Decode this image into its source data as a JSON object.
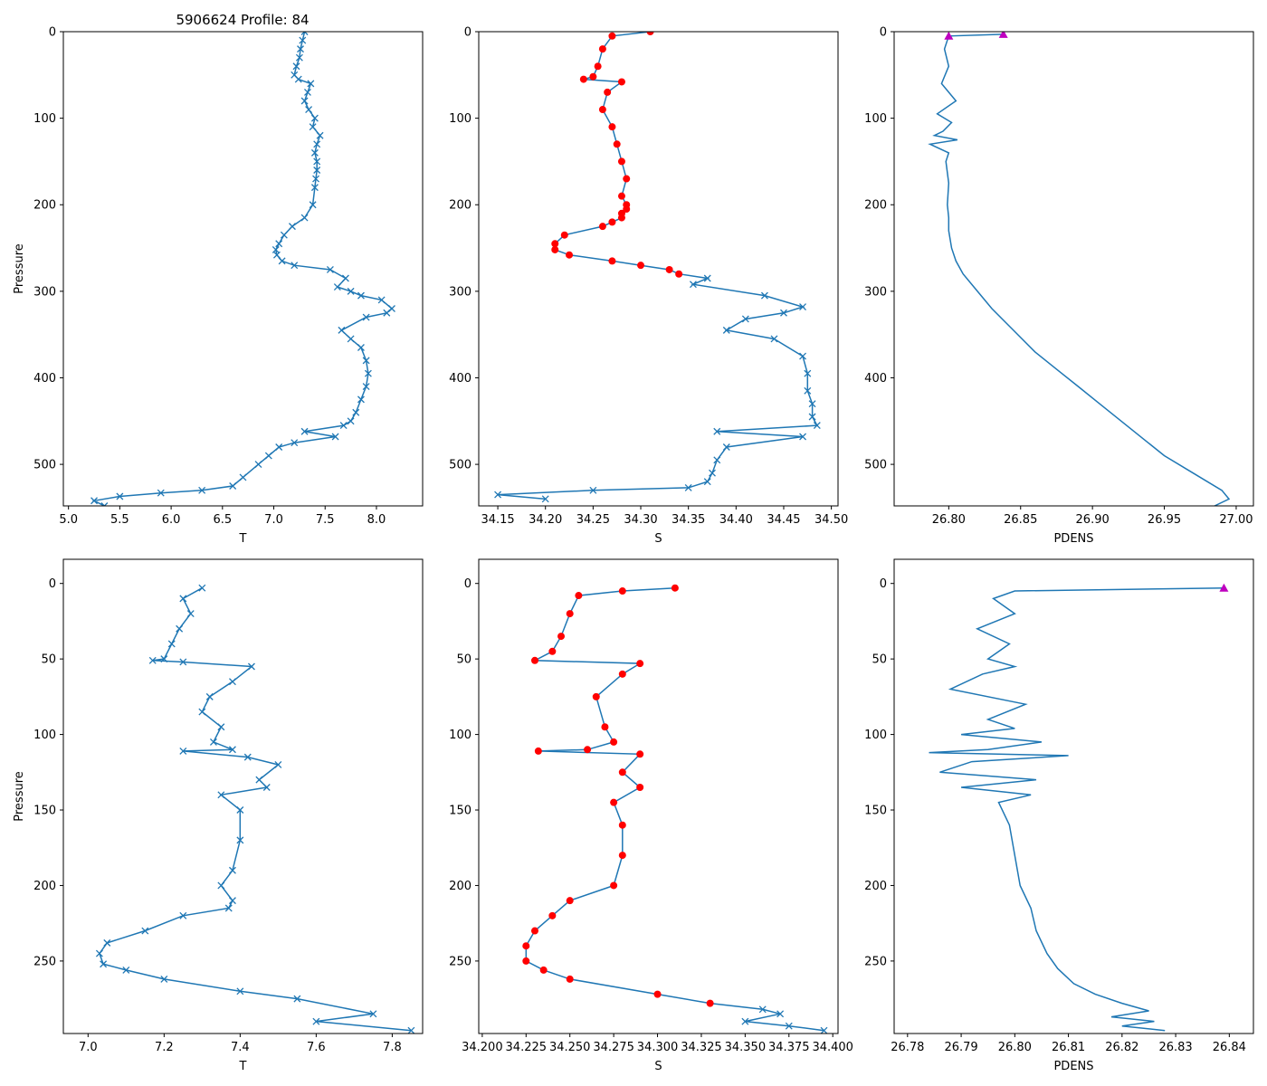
{
  "figure": {
    "suptitle": "5906624 Profile: 84",
    "colors": {
      "line": "#1f77b4",
      "salt_marker": "#ff0000",
      "dens_marker": "#bf00bf",
      "axis": "#000000"
    }
  },
  "chart_data": [
    {
      "id": "top_T",
      "type": "line",
      "title": "5906624 Profile: 84",
      "xlabel": "T",
      "ylabel": "Pressure",
      "xlim": [
        4.95,
        8.45
      ],
      "ylim": [
        548,
        0
      ],
      "xticks": [
        5.0,
        5.5,
        6.0,
        6.5,
        7.0,
        7.5,
        8.0
      ],
      "xtick_labels": [
        "5.0",
        "5.5",
        "6.0",
        "6.5",
        "7.0",
        "7.5",
        "8.0"
      ],
      "yticks": [
        0,
        100,
        200,
        300,
        400,
        500
      ],
      "ytick_labels": [
        "0",
        "100",
        "200",
        "300",
        "400",
        "500"
      ],
      "marker": "x",
      "highlight_range": [],
      "series": [
        {
          "name": "T",
          "x": [
            7.3,
            7.28,
            7.26,
            7.25,
            7.22,
            7.2,
            7.24,
            7.36,
            7.33,
            7.3,
            7.34,
            7.4,
            7.38,
            7.45,
            7.42,
            7.4,
            7.42,
            7.42,
            7.41,
            7.4,
            7.38,
            7.3,
            7.18,
            7.1,
            7.05,
            7.02,
            7.03,
            7.08,
            7.2,
            7.55,
            7.7,
            7.62,
            7.75,
            7.85,
            8.05,
            8.15,
            8.1,
            7.9,
            7.66,
            7.75,
            7.85,
            7.9,
            7.92,
            7.9,
            7.85,
            7.8,
            7.75,
            7.68,
            7.3,
            7.6,
            7.2,
            7.05,
            6.95,
            6.85,
            6.7,
            6.6,
            6.3,
            5.9,
            5.5,
            5.25,
            5.35
          ],
          "y": [
            0,
            10,
            20,
            30,
            40,
            50,
            55,
            60,
            70,
            80,
            90,
            100,
            110,
            120,
            130,
            140,
            150,
            160,
            170,
            180,
            200,
            215,
            225,
            235,
            245,
            252,
            258,
            265,
            270,
            275,
            285,
            295,
            300,
            305,
            310,
            320,
            325,
            330,
            345,
            355,
            365,
            380,
            395,
            410,
            425,
            440,
            450,
            455,
            462,
            468,
            475,
            480,
            490,
            500,
            515,
            525,
            530,
            533,
            537,
            542,
            548
          ]
        }
      ]
    },
    {
      "id": "top_S",
      "type": "line",
      "title": "",
      "xlabel": "S",
      "ylabel": "",
      "xlim": [
        34.13,
        34.507
      ],
      "ylim": [
        548,
        0
      ],
      "xticks": [
        34.15,
        34.2,
        34.25,
        34.3,
        34.35,
        34.4,
        34.45,
        34.5
      ],
      "xtick_labels": [
        "34.15",
        "34.20",
        "34.25",
        "34.30",
        "34.35",
        "34.40",
        "34.45",
        "34.50"
      ],
      "yticks": [
        0,
        100,
        200,
        300,
        400,
        500
      ],
      "ytick_labels": [
        "0",
        "100",
        "200",
        "300",
        "400",
        "500"
      ],
      "marker": "x",
      "highlight_range": [
        0,
        280
      ],
      "series": [
        {
          "name": "S",
          "x": [
            34.31,
            34.27,
            34.26,
            34.255,
            34.25,
            34.24,
            34.28,
            34.265,
            34.26,
            34.27,
            34.275,
            34.28,
            34.285,
            34.28,
            34.285,
            34.285,
            34.28,
            34.28,
            34.27,
            34.26,
            34.22,
            34.21,
            34.21,
            34.225,
            34.27,
            34.3,
            34.33,
            34.34,
            34.37,
            34.355,
            34.43,
            34.47,
            34.45,
            34.41,
            34.39,
            34.44,
            34.47,
            34.475,
            34.475,
            34.48,
            34.48,
            34.485,
            34.38,
            34.47,
            34.39,
            34.38,
            34.375,
            34.37,
            34.35,
            34.25,
            34.15,
            34.2
          ],
          "y": [
            0,
            5,
            20,
            40,
            52,
            55,
            58,
            70,
            90,
            110,
            130,
            150,
            170,
            190,
            200,
            205,
            210,
            215,
            220,
            225,
            235,
            245,
            252,
            258,
            265,
            270,
            275,
            280,
            285,
            292,
            305,
            318,
            325,
            332,
            345,
            355,
            375,
            395,
            415,
            430,
            445,
            455,
            462,
            468,
            480,
            495,
            510,
            520,
            527,
            530,
            535,
            540
          ]
        }
      ]
    },
    {
      "id": "top_PDENS",
      "type": "line",
      "title": "",
      "xlabel": "PDENS",
      "ylabel": "",
      "xlim": [
        26.762,
        27.012
      ],
      "ylim": [
        548,
        0
      ],
      "xticks": [
        26.8,
        26.85,
        26.9,
        26.95,
        27.0
      ],
      "xtick_labels": [
        "26.80",
        "26.85",
        "26.90",
        "26.95",
        "27.00"
      ],
      "yticks": [
        0,
        100,
        200,
        300,
        400,
        500
      ],
      "ytick_labels": [
        "0",
        "100",
        "200",
        "300",
        "400",
        "500"
      ],
      "marker": "",
      "highlight_range": [
        0,
        5
      ],
      "series": [
        {
          "name": "PDENS",
          "x": [
            26.838,
            26.8,
            26.797,
            26.8,
            26.795,
            26.805,
            26.792,
            26.802,
            26.796,
            26.79,
            26.806,
            26.787,
            26.8,
            26.798,
            26.8,
            26.799,
            26.8,
            26.8,
            26.802,
            26.805,
            26.81,
            26.82,
            26.83,
            26.845,
            26.86,
            26.875,
            26.89,
            26.905,
            26.92,
            26.935,
            26.95,
            26.97,
            26.99,
            26.995,
            26.985
          ],
          "y": [
            3,
            5,
            20,
            40,
            60,
            80,
            95,
            105,
            115,
            120,
            125,
            130,
            140,
            150,
            175,
            200,
            215,
            230,
            250,
            265,
            280,
            300,
            320,
            345,
            370,
            390,
            410,
            430,
            450,
            470,
            490,
            510,
            530,
            540,
            548
          ]
        }
      ]
    },
    {
      "id": "bot_T",
      "type": "line",
      "title": "",
      "xlabel": "T",
      "ylabel": "Pressure",
      "xlim": [
        6.935,
        7.88
      ],
      "ylim": [
        298,
        -16
      ],
      "xticks": [
        7.0,
        7.2,
        7.4,
        7.6,
        7.8
      ],
      "xtick_labels": [
        "7.0",
        "7.2",
        "7.4",
        "7.6",
        "7.8"
      ],
      "yticks": [
        0,
        50,
        100,
        150,
        200,
        250
      ],
      "ytick_labels": [
        "0",
        "50",
        "100",
        "150",
        "200",
        "250"
      ],
      "marker": "x",
      "highlight_range": [],
      "series": [
        {
          "name": "T",
          "x": [
            7.3,
            7.25,
            7.27,
            7.24,
            7.22,
            7.2,
            7.17,
            7.25,
            7.43,
            7.38,
            7.32,
            7.3,
            7.35,
            7.33,
            7.38,
            7.25,
            7.42,
            7.5,
            7.45,
            7.47,
            7.35,
            7.4,
            7.4,
            7.38,
            7.35,
            7.38,
            7.37,
            7.25,
            7.15,
            7.05,
            7.03,
            7.04,
            7.1,
            7.2,
            7.4,
            7.55,
            7.75,
            7.6,
            7.85
          ],
          "y": [
            3,
            10,
            20,
            30,
            40,
            50,
            51,
            52,
            55,
            65,
            75,
            85,
            95,
            105,
            110,
            111,
            115,
            120,
            130,
            135,
            140,
            150,
            170,
            190,
            200,
            210,
            215,
            220,
            230,
            238,
            245,
            252,
            256,
            262,
            270,
            275,
            285,
            290,
            296
          ]
        }
      ]
    },
    {
      "id": "bot_S",
      "type": "line",
      "title": "",
      "xlabel": "S",
      "ylabel": "",
      "xlim": [
        34.198,
        34.403
      ],
      "ylim": [
        298,
        -16
      ],
      "xticks": [
        34.2,
        34.225,
        34.25,
        34.275,
        34.3,
        34.325,
        34.35,
        34.375,
        34.4
      ],
      "xtick_labels": [
        "34.200",
        "34.225",
        "34.250",
        "34.275",
        "34.300",
        "34.325",
        "34.350",
        "34.375",
        "34.400"
      ],
      "yticks": [
        0,
        50,
        100,
        150,
        200,
        250
      ],
      "ytick_labels": [
        "0",
        "50",
        "100",
        "150",
        "200",
        "250"
      ],
      "marker": "x",
      "highlight_range": [
        0,
        280
      ],
      "series": [
        {
          "name": "S",
          "x": [
            34.31,
            34.28,
            34.255,
            34.25,
            34.245,
            34.24,
            34.23,
            34.29,
            34.28,
            34.265,
            34.27,
            34.275,
            34.26,
            34.232,
            34.29,
            34.28,
            34.29,
            34.275,
            34.28,
            34.28,
            34.275,
            34.25,
            34.24,
            34.23,
            34.225,
            34.225,
            34.235,
            34.25,
            34.3,
            34.33,
            34.36,
            34.37,
            34.35,
            34.375,
            34.395
          ],
          "y": [
            3,
            5,
            8,
            20,
            35,
            45,
            51,
            53,
            60,
            75,
            95,
            105,
            110,
            111,
            113,
            125,
            135,
            145,
            160,
            180,
            200,
            210,
            220,
            230,
            240,
            250,
            256,
            262,
            272,
            278,
            282,
            285,
            290,
            293,
            296
          ]
        }
      ]
    },
    {
      "id": "bot_PDENS",
      "type": "line",
      "title": "",
      "xlabel": "PDENS",
      "ylabel": "",
      "xlim": [
        26.7775,
        26.8445
      ],
      "ylim": [
        298,
        -16
      ],
      "xticks": [
        26.78,
        26.79,
        26.8,
        26.81,
        26.82,
        26.83,
        26.84
      ],
      "xtick_labels": [
        "26.78",
        "26.79",
        "26.80",
        "26.81",
        "26.82",
        "26.83",
        "26.84"
      ],
      "yticks": [
        0,
        50,
        100,
        150,
        200,
        250
      ],
      "ytick_labels": [
        "0",
        "50",
        "100",
        "150",
        "200",
        "250"
      ],
      "marker": "",
      "highlight_range": [
        0,
        3.5
      ],
      "series": [
        {
          "name": "PDENS",
          "x": [
            26.839,
            26.8,
            26.796,
            26.8,
            26.793,
            26.799,
            26.795,
            26.8,
            26.794,
            26.788,
            26.802,
            26.795,
            26.8,
            26.79,
            26.805,
            26.795,
            26.784,
            26.81,
            26.792,
            26.786,
            26.804,
            26.79,
            26.803,
            26.797,
            26.799,
            26.8,
            26.801,
            26.803,
            26.804,
            26.806,
            26.808,
            26.811,
            26.815,
            26.82,
            26.825,
            26.818,
            26.826,
            26.82,
            26.828
          ],
          "y": [
            3,
            5,
            10,
            20,
            30,
            40,
            50,
            55,
            60,
            70,
            80,
            90,
            96,
            100,
            105,
            110,
            112,
            114,
            118,
            125,
            130,
            135,
            140,
            145,
            160,
            180,
            200,
            215,
            230,
            245,
            255,
            265,
            272,
            278,
            283,
            287,
            290,
            293,
            296
          ]
        }
      ]
    }
  ]
}
